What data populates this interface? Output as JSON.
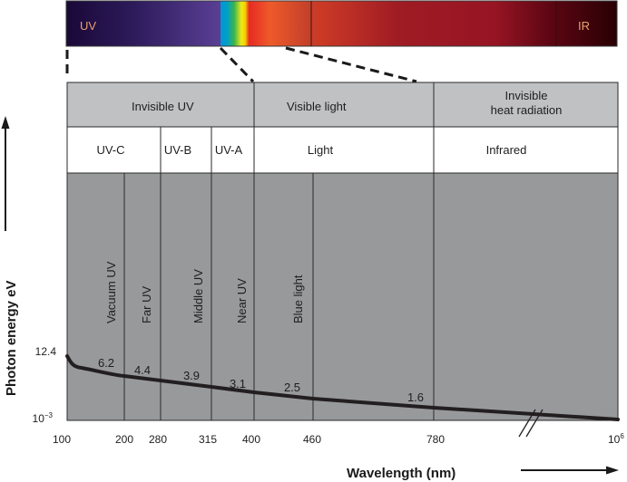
{
  "spectrum_bar": {
    "left_label": "UV",
    "right_label": "IR",
    "label_color": "#e8a070"
  },
  "bands": {
    "top_row": [
      {
        "label": "Invisible UV"
      },
      {
        "label": "Visible light"
      },
      {
        "label_line1": "Invisible",
        "label_line2": "heat radiation"
      }
    ],
    "second_row": [
      {
        "label": "UV-C"
      },
      {
        "label": "UV-B"
      },
      {
        "label": "UV-A"
      },
      {
        "label": "Light"
      },
      {
        "label": "Infrared"
      }
    ],
    "vertical_labels": [
      "Vacuum UV",
      "Far UV",
      "Middle UV",
      "Near  UV",
      "Blue light"
    ]
  },
  "colors": {
    "header_grey": "#c0c1c3",
    "plot_grey": "#98999b",
    "curve": "#231f20",
    "uv_dark": "#1c0a40",
    "uv_light": "#6a4ca0",
    "ir_dark": "#2a0006",
    "red": "#9a1420"
  },
  "chart_data": {
    "type": "line",
    "title": "",
    "xlabel": "Wavelength (nm)",
    "ylabel": "Photon energy eV",
    "x_ticks": [
      "100",
      "200",
      "280",
      "315",
      "400",
      "460",
      "780",
      "10^6"
    ],
    "x_tick_labels": {
      "base": "10",
      "exp": "6"
    },
    "y_ticks": {
      "top": "12.4",
      "bottom_base": "10",
      "bottom_exp": "−3"
    },
    "axis_break": true,
    "series": [
      {
        "name": "Photon energy",
        "points": [
          {
            "x": "100",
            "y": 12.4
          },
          {
            "x": "200",
            "y": 6.2
          },
          {
            "x": "280",
            "y": 4.4
          },
          {
            "x": "315",
            "y": 3.9
          },
          {
            "x": "400",
            "y": 3.1
          },
          {
            "x": "460",
            "y": 2.5
          },
          {
            "x": "780",
            "y": 1.6
          },
          {
            "x": "10^6",
            "y": 0.001
          }
        ]
      }
    ],
    "data_labels": [
      "6.2",
      "4.4",
      "3.9",
      "3.1",
      "2.5",
      "1.6"
    ]
  }
}
